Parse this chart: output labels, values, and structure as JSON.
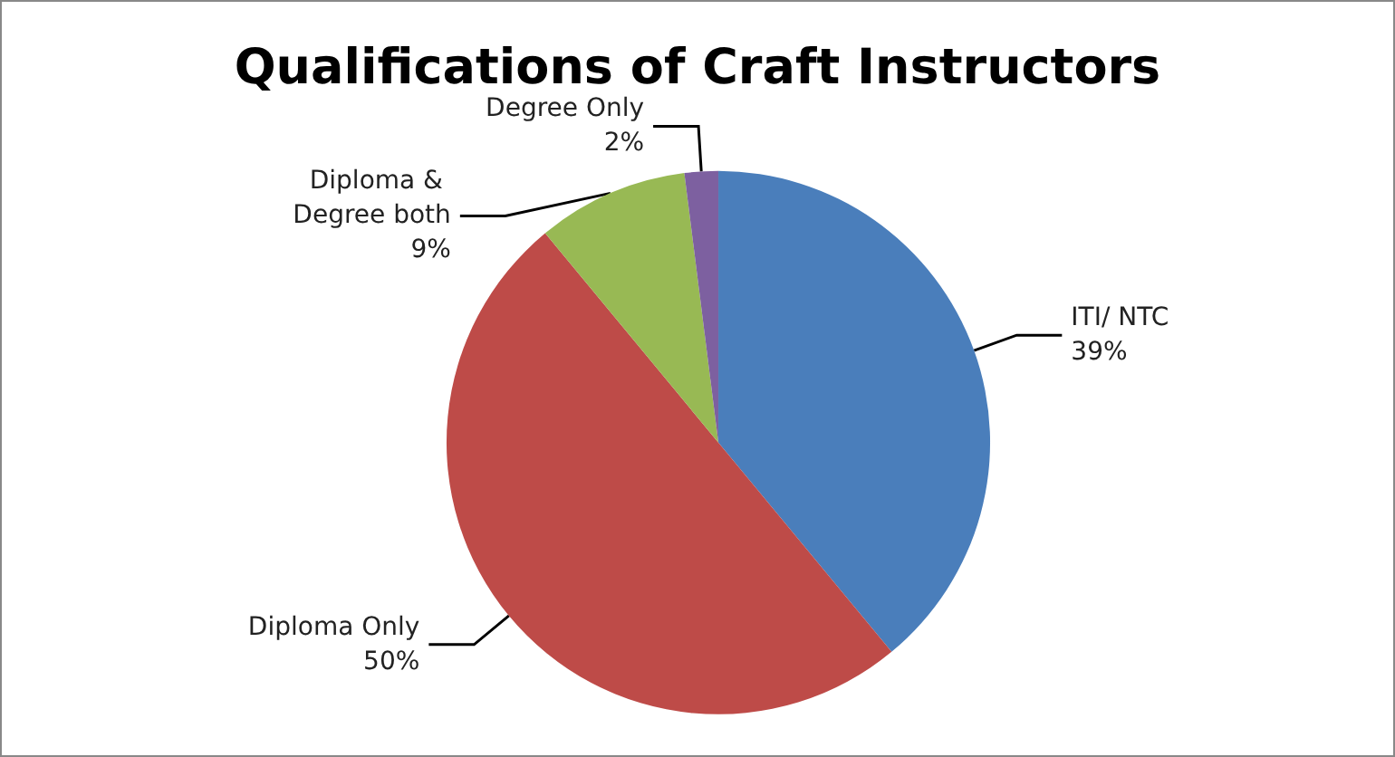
{
  "chart_data": {
    "type": "pie",
    "title": "Qualifications of Craft Instructors",
    "categories": [
      "ITI/ NTC",
      "Diploma Only",
      "Diploma & Degree both",
      "Degree Only"
    ],
    "values": [
      39,
      50,
      9,
      2
    ],
    "colors": [
      "#4a7ebb",
      "#be4b48",
      "#98b954",
      "#7d60a0"
    ],
    "value_labels": [
      "39%",
      "50%",
      "9%",
      "2%"
    ],
    "legend": false
  }
}
